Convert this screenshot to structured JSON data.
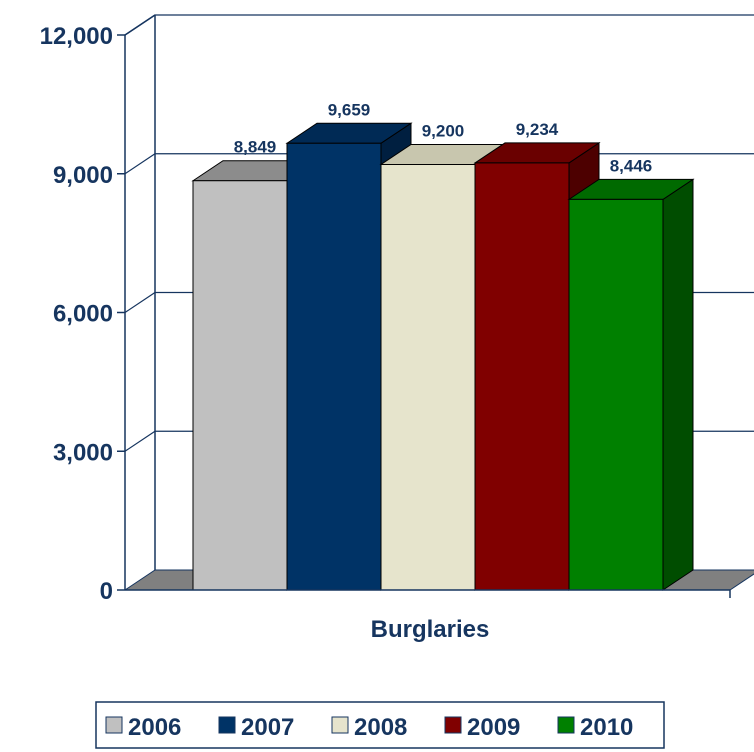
{
  "chart_data": {
    "type": "bar",
    "categories": [
      "Burglaries"
    ],
    "series": [
      {
        "name": "2006",
        "values": [
          8849
        ],
        "label": "8,849",
        "color": "#c0c0c0",
        "side": "#9a9a9a",
        "top": "#8c8c8c"
      },
      {
        "name": "2007",
        "values": [
          9659
        ],
        "label": "9,659",
        "color": "#003366",
        "side": "#001f40",
        "top": "#002a55"
      },
      {
        "name": "2008",
        "values": [
          9200
        ],
        "label": "9,200",
        "color": "#e6e4cc",
        "side": "#b8b6a0",
        "top": "#c8c6ae"
      },
      {
        "name": "2009",
        "values": [
          9234
        ],
        "label": "9,234",
        "color": "#800000",
        "side": "#4d0000",
        "top": "#6a0000"
      },
      {
        "name": "2010",
        "values": [
          8446
        ],
        "label": "8,446",
        "color": "#008000",
        "side": "#004d00",
        "top": "#006a00"
      }
    ],
    "y_ticks": [
      "0",
      "3,000",
      "6,000",
      "9,000",
      "12,000"
    ],
    "ylim": [
      0,
      12000
    ],
    "grid": true,
    "legend_position": "bottom",
    "legend": [
      "2006",
      "2007",
      "2008",
      "2009",
      "2010"
    ],
    "colors": {
      "axis": "#16355f",
      "floor": "#808080",
      "text": "#16355f"
    }
  }
}
